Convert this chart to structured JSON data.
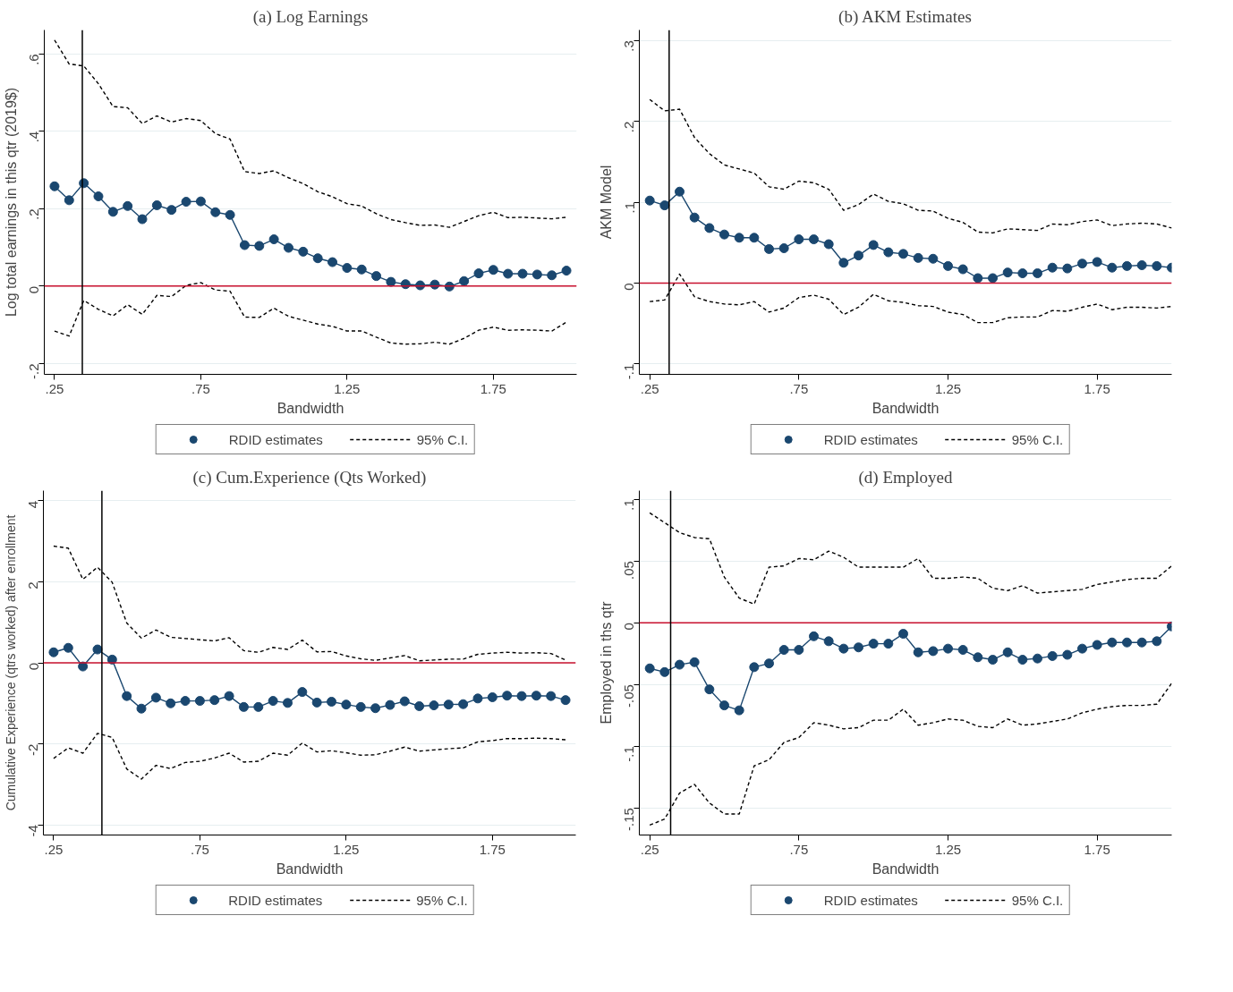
{
  "chart_data": [
    {
      "type": "line",
      "title": "(a) Log Earnings",
      "xlabel": "Bandwidth",
      "ylabel": "Log total earnings in this qtr (2019$)",
      "x": [
        0.25,
        0.3,
        0.35,
        0.4,
        0.45,
        0.5,
        0.55,
        0.6,
        0.65,
        0.7,
        0.75,
        0.8,
        0.85,
        0.9,
        0.95,
        1.0,
        1.05,
        1.1,
        1.15,
        1.2,
        1.25,
        1.3,
        1.35,
        1.4,
        1.45,
        1.5,
        1.55,
        1.6,
        1.65,
        1.7,
        1.75,
        1.8,
        1.85,
        1.9,
        1.95,
        2.0
      ],
      "series": [
        {
          "name": "RDID estimates",
          "color": "#1a476f",
          "marker": "circle",
          "line_style": "solid",
          "values": [
            0.258,
            0.222,
            0.266,
            0.232,
            0.192,
            0.207,
            0.173,
            0.209,
            0.197,
            0.218,
            0.219,
            0.191,
            0.184,
            0.106,
            0.104,
            0.121,
            0.099,
            0.089,
            0.072,
            0.062,
            0.047,
            0.043,
            0.026,
            0.011,
            0.005,
            0.002,
            0.004,
            -0.001,
            0.013,
            0.033,
            0.042,
            0.032,
            0.032,
            0.03,
            0.028,
            0.04
          ]
        },
        {
          "name": "95% C.I.",
          "color": "#000000",
          "line_style": "dashed",
          "values": [
            0.636,
            0.574,
            0.569,
            0.523,
            0.464,
            0.461,
            0.42,
            0.44,
            0.424,
            0.433,
            0.428,
            0.394,
            0.38,
            0.296,
            0.291,
            0.298,
            0.28,
            0.265,
            0.244,
            0.231,
            0.213,
            0.207,
            0.187,
            0.172,
            0.164,
            0.157,
            0.158,
            0.152,
            0.167,
            0.182,
            0.191,
            0.177,
            0.178,
            0.176,
            0.174,
            0.178
          ]
        },
        {
          "color": "#000000",
          "line_style": "dashed",
          "values": [
            -0.116,
            -0.129,
            -0.037,
            -0.06,
            -0.077,
            -0.048,
            -0.073,
            -0.024,
            -0.027,
            0.002,
            0.009,
            -0.01,
            -0.013,
            -0.08,
            -0.081,
            -0.057,
            -0.078,
            -0.088,
            -0.098,
            -0.104,
            -0.116,
            -0.116,
            -0.132,
            -0.147,
            -0.15,
            -0.149,
            -0.145,
            -0.15,
            -0.135,
            -0.114,
            -0.106,
            -0.114,
            -0.113,
            -0.114,
            -0.116,
            -0.093
          ]
        }
      ],
      "xlim": [
        0.215,
        2.035
      ],
      "xticks": [
        {
          "value": 0.25,
          "label": ".25"
        },
        {
          "value": 0.75,
          "label": ".75"
        },
        {
          "value": 1.25,
          "label": "1.25"
        },
        {
          "value": 1.75,
          "label": "1.75"
        }
      ],
      "ylim": [
        -0.228,
        0.662
      ],
      "yticks": [
        {
          "value": -0.2,
          "label": "-.2"
        },
        0,
        {
          "value": 0.2,
          "label": ".2"
        },
        {
          "value": 0.4,
          "label": ".4"
        },
        {
          "value": 0.6,
          "label": ".6"
        }
      ],
      "grid": "y",
      "legend": "bottom",
      "ref_lines": [
        {
          "axis": "y",
          "value": 0,
          "color": "#c8102e"
        },
        {
          "axis": "x",
          "value": 0.345,
          "color": "#000000"
        }
      ]
    },
    {
      "type": "line",
      "title": "(b) AKM Estimates",
      "xlabel": "Bandwidth",
      "ylabel": "AKM Model",
      "x": [
        0.25,
        0.3,
        0.35,
        0.4,
        0.45,
        0.5,
        0.55,
        0.6,
        0.65,
        0.7,
        0.75,
        0.8,
        0.85,
        0.9,
        0.95,
        1.0,
        1.05,
        1.1,
        1.15,
        1.2,
        1.25,
        1.3,
        1.35,
        1.4,
        1.45,
        1.5,
        1.55,
        1.6,
        1.65,
        1.7,
        1.75,
        1.8,
        1.85,
        1.9,
        1.95,
        2.0
      ],
      "series": [
        {
          "name": "RDID estimates",
          "color": "#1a476f",
          "marker": "circle",
          "line_style": "solid",
          "values": [
            0.102,
            0.096,
            0.113,
            0.081,
            0.068,
            0.06,
            0.056,
            0.056,
            0.042,
            0.043,
            0.054,
            0.054,
            0.048,
            0.025,
            0.034,
            0.047,
            0.038,
            0.036,
            0.031,
            0.03,
            0.021,
            0.017,
            0.006,
            0.006,
            0.013,
            0.012,
            0.012,
            0.019,
            0.018,
            0.024,
            0.026,
            0.019,
            0.021,
            0.022,
            0.021,
            0.019
          ]
        },
        {
          "name": "95% C.I.",
          "color": "#000000",
          "line_style": "dashed",
          "values": [
            0.227,
            0.213,
            0.215,
            0.18,
            0.16,
            0.146,
            0.141,
            0.136,
            0.119,
            0.116,
            0.126,
            0.124,
            0.116,
            0.09,
            0.097,
            0.11,
            0.101,
            0.098,
            0.09,
            0.089,
            0.08,
            0.075,
            0.063,
            0.062,
            0.067,
            0.066,
            0.065,
            0.073,
            0.072,
            0.076,
            0.078,
            0.071,
            0.073,
            0.074,
            0.073,
            0.068
          ]
        },
        {
          "color": "#000000",
          "line_style": "dashed",
          "values": [
            -0.023,
            -0.021,
            0.011,
            -0.017,
            -0.023,
            -0.026,
            -0.027,
            -0.023,
            -0.036,
            -0.031,
            -0.018,
            -0.015,
            -0.02,
            -0.039,
            -0.03,
            -0.014,
            -0.022,
            -0.024,
            -0.028,
            -0.029,
            -0.036,
            -0.039,
            -0.049,
            -0.049,
            -0.043,
            -0.042,
            -0.042,
            -0.034,
            -0.035,
            -0.03,
            -0.026,
            -0.033,
            -0.03,
            -0.03,
            -0.031,
            -0.029
          ]
        }
      ],
      "xlim": [
        0.215,
        2.0
      ],
      "xticks": [
        {
          "value": 0.25,
          "label": ".25"
        },
        {
          "value": 0.75,
          "label": ".75"
        },
        {
          "value": 1.25,
          "label": "1.25"
        },
        {
          "value": 1.75,
          "label": "1.75"
        }
      ],
      "ylim": [
        -0.113,
        0.313
      ],
      "yticks": [
        {
          "value": -0.1,
          "label": "-.1"
        },
        0,
        {
          "value": 0.1,
          "label": ".1"
        },
        {
          "value": 0.2,
          "label": ".2"
        },
        {
          "value": 0.3,
          "label": ".3"
        }
      ],
      "grid": "y",
      "legend": "bottom",
      "ref_lines": [
        {
          "axis": "y",
          "value": 0,
          "color": "#c8102e"
        },
        {
          "axis": "x",
          "value": 0.315,
          "color": "#000000"
        }
      ]
    },
    {
      "type": "line",
      "title": "(c) Cum.Experience (Qts Worked)",
      "xlabel": "Bandwidth",
      "ylabel": "Cumulative Experience (qtrs worked) after enrollment",
      "x": [
        0.25,
        0.3,
        0.35,
        0.4,
        0.45,
        0.5,
        0.55,
        0.6,
        0.65,
        0.7,
        0.75,
        0.8,
        0.85,
        0.9,
        0.95,
        1.0,
        1.05,
        1.1,
        1.15,
        1.2,
        1.25,
        1.3,
        1.35,
        1.4,
        1.45,
        1.5,
        1.55,
        1.6,
        1.65,
        1.7,
        1.75,
        1.8,
        1.85,
        1.9,
        1.95,
        2.0
      ],
      "series": [
        {
          "name": "RDID estimates",
          "color": "#1a476f",
          "marker": "circle",
          "line_style": "solid",
          "values": [
            0.26,
            0.37,
            -0.09,
            0.33,
            0.08,
            -0.82,
            -1.13,
            -0.86,
            -1.0,
            -0.94,
            -0.94,
            -0.92,
            -0.82,
            -1.09,
            -1.09,
            -0.94,
            -0.99,
            -0.72,
            -0.98,
            -0.96,
            -1.03,
            -1.09,
            -1.12,
            -1.04,
            -0.95,
            -1.07,
            -1.05,
            -1.03,
            -1.02,
            -0.88,
            -0.85,
            -0.81,
            -0.82,
            -0.81,
            -0.82,
            -0.92
          ]
        },
        {
          "name": "95% C.I.",
          "color": "#000000",
          "line_style": "dashed",
          "values": [
            2.88,
            2.83,
            2.06,
            2.36,
            1.99,
            0.98,
            0.61,
            0.81,
            0.63,
            0.6,
            0.57,
            0.54,
            0.62,
            0.3,
            0.26,
            0.38,
            0.33,
            0.56,
            0.27,
            0.28,
            0.17,
            0.1,
            0.06,
            0.12,
            0.18,
            0.05,
            0.07,
            0.09,
            0.09,
            0.21,
            0.24,
            0.26,
            0.24,
            0.25,
            0.23,
            0.07
          ]
        },
        {
          "color": "#000000",
          "line_style": "dashed",
          "values": [
            -2.36,
            -2.1,
            -2.23,
            -1.74,
            -1.84,
            -2.62,
            -2.87,
            -2.53,
            -2.61,
            -2.46,
            -2.43,
            -2.35,
            -2.23,
            -2.45,
            -2.43,
            -2.23,
            -2.28,
            -1.98,
            -2.2,
            -2.17,
            -2.22,
            -2.28,
            -2.27,
            -2.18,
            -2.08,
            -2.18,
            -2.15,
            -2.12,
            -2.1,
            -1.95,
            -1.92,
            -1.87,
            -1.87,
            -1.86,
            -1.87,
            -1.9
          ]
        }
      ],
      "xlim": [
        0.215,
        2.035
      ],
      "xticks": [
        {
          "value": 0.25,
          "label": ".25"
        },
        {
          "value": 0.75,
          "label": ".75"
        },
        {
          "value": 1.25,
          "label": "1.25"
        },
        {
          "value": 1.75,
          "label": "1.75"
        }
      ],
      "ylim": [
        -4.25,
        4.25
      ],
      "yticks": [
        -4,
        -2,
        0,
        2,
        4
      ],
      "grid": "y",
      "legend": "bottom",
      "ref_lines": [
        {
          "axis": "y",
          "value": 0,
          "color": "#c8102e"
        },
        {
          "axis": "x",
          "value": 0.415,
          "color": "#000000"
        }
      ]
    },
    {
      "type": "line",
      "title": "(d) Employed",
      "xlabel": "Bandwidth",
      "ylabel": "Employed in ths qtr",
      "x": [
        0.25,
        0.3,
        0.35,
        0.4,
        0.45,
        0.5,
        0.55,
        0.6,
        0.65,
        0.7,
        0.75,
        0.8,
        0.85,
        0.9,
        0.95,
        1.0,
        1.05,
        1.1,
        1.15,
        1.2,
        1.25,
        1.3,
        1.35,
        1.4,
        1.45,
        1.5,
        1.55,
        1.6,
        1.65,
        1.7,
        1.75,
        1.8,
        1.85,
        1.9,
        1.95,
        2.0
      ],
      "series": [
        {
          "name": "RDID estimates",
          "color": "#1a476f",
          "marker": "circle",
          "line_style": "solid",
          "values": [
            -0.037,
            -0.04,
            -0.034,
            -0.032,
            -0.054,
            -0.067,
            -0.071,
            -0.036,
            -0.033,
            -0.022,
            -0.022,
            -0.011,
            -0.015,
            -0.021,
            -0.02,
            -0.017,
            -0.017,
            -0.009,
            -0.024,
            -0.023,
            -0.021,
            -0.022,
            -0.028,
            -0.03,
            -0.024,
            -0.03,
            -0.029,
            -0.027,
            -0.026,
            -0.021,
            -0.018,
            -0.016,
            -0.016,
            -0.016,
            -0.015,
            -0.003
          ]
        },
        {
          "name": "95% C.I.",
          "color": "#000000",
          "line_style": "dashed",
          "values": [
            0.089,
            0.081,
            0.073,
            0.069,
            0.068,
            0.037,
            0.02,
            0.015,
            0.045,
            0.046,
            0.052,
            0.051,
            0.058,
            0.053,
            0.045,
            0.045,
            0.045,
            0.045,
            0.052,
            0.036,
            0.036,
            0.037,
            0.036,
            0.028,
            0.026,
            0.03,
            0.024,
            0.025,
            0.026,
            0.027,
            0.031,
            0.033,
            0.035,
            0.036,
            0.036,
            0.046
          ]
        },
        {
          "color": "#000000",
          "line_style": "dashed",
          "values": [
            -0.164,
            -0.159,
            -0.138,
            -0.131,
            -0.146,
            -0.155,
            -0.155,
            -0.116,
            -0.111,
            -0.097,
            -0.093,
            -0.081,
            -0.083,
            -0.086,
            -0.085,
            -0.079,
            -0.079,
            -0.07,
            -0.083,
            -0.081,
            -0.078,
            -0.079,
            -0.084,
            -0.085,
            -0.078,
            -0.083,
            -0.082,
            -0.08,
            -0.078,
            -0.073,
            -0.07,
            -0.068,
            -0.067,
            -0.067,
            -0.066,
            -0.049
          ]
        }
      ],
      "xlim": [
        0.215,
        2.0
      ],
      "xticks": [
        {
          "value": 0.25,
          "label": ".25"
        },
        {
          "value": 0.75,
          "label": ".75"
        },
        {
          "value": 1.25,
          "label": "1.25"
        },
        {
          "value": 1.75,
          "label": "1.75"
        }
      ],
      "ylim": [
        -0.172,
        0.107
      ],
      "yticks": [
        {
          "value": -0.15,
          "label": "-.15"
        },
        {
          "value": -0.1,
          "label": "-.1"
        },
        {
          "value": -0.05,
          "label": "-.05"
        },
        0,
        {
          "value": 0.05,
          "label": ".05"
        },
        {
          "value": 0.1,
          "label": ".1"
        }
      ],
      "grid": "y",
      "legend": "bottom",
      "ref_lines": [
        {
          "axis": "y",
          "value": 0,
          "color": "#c8102e"
        },
        {
          "axis": "x",
          "value": 0.32,
          "color": "#000000"
        }
      ]
    }
  ]
}
